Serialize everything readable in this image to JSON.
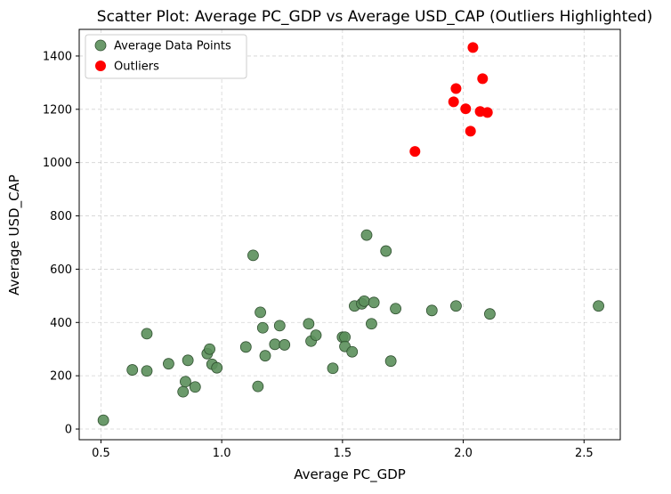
{
  "chart_data": {
    "type": "scatter",
    "title": "Scatter Plot: Average PC_GDP vs Average USD_CAP (Outliers Highlighted)",
    "xlabel": "Average PC_GDP",
    "ylabel": "Average USD_CAP",
    "xlim": [
      0.41,
      2.65
    ],
    "ylim": [
      -40,
      1500
    ],
    "xticks": [
      0.5,
      1.0,
      1.5,
      2.0,
      2.5
    ],
    "xtick_labels": [
      "0.5",
      "1.0",
      "1.5",
      "2.0",
      "2.5"
    ],
    "yticks": [
      0,
      200,
      400,
      600,
      800,
      1000,
      1200,
      1400
    ],
    "ytick_labels": [
      "0",
      "200",
      "400",
      "600",
      "800",
      "1000",
      "1200",
      "1400"
    ],
    "grid": true,
    "legend_position": "top-left",
    "series": [
      {
        "name": "Average Data Points",
        "color": "#5b8f5b",
        "edge_color": "#2f4f2f",
        "points": [
          [
            0.51,
            33
          ],
          [
            0.63,
            222
          ],
          [
            0.69,
            218
          ],
          [
            0.69,
            358
          ],
          [
            0.78,
            245
          ],
          [
            0.84,
            140
          ],
          [
            0.85,
            178
          ],
          [
            0.86,
            258
          ],
          [
            0.89,
            158
          ],
          [
            0.94,
            283
          ],
          [
            0.95,
            300
          ],
          [
            0.96,
            243
          ],
          [
            0.98,
            230
          ],
          [
            1.1,
            308
          ],
          [
            1.13,
            652
          ],
          [
            1.15,
            160
          ],
          [
            1.16,
            438
          ],
          [
            1.17,
            380
          ],
          [
            1.18,
            275
          ],
          [
            1.22,
            318
          ],
          [
            1.24,
            388
          ],
          [
            1.26,
            316
          ],
          [
            1.36,
            395
          ],
          [
            1.37,
            330
          ],
          [
            1.39,
            352
          ],
          [
            1.46,
            228
          ],
          [
            1.5,
            345
          ],
          [
            1.51,
            345
          ],
          [
            1.51,
            310
          ],
          [
            1.54,
            290
          ],
          [
            1.55,
            462
          ],
          [
            1.58,
            470
          ],
          [
            1.59,
            480
          ],
          [
            1.6,
            728
          ],
          [
            1.62,
            395
          ],
          [
            1.63,
            475
          ],
          [
            1.68,
            668
          ],
          [
            1.7,
            255
          ],
          [
            1.72,
            452
          ],
          [
            1.87,
            445
          ],
          [
            1.97,
            462
          ],
          [
            2.11,
            432
          ],
          [
            2.56,
            462
          ]
        ]
      },
      {
        "name": "Outliers",
        "color": "#ff0000",
        "points": [
          [
            1.8,
            1042
          ],
          [
            1.96,
            1228
          ],
          [
            1.97,
            1278
          ],
          [
            2.01,
            1202
          ],
          [
            2.03,
            1118
          ],
          [
            2.04,
            1432
          ],
          [
            2.07,
            1192
          ],
          [
            2.08,
            1315
          ],
          [
            2.1,
            1188
          ]
        ]
      }
    ]
  }
}
